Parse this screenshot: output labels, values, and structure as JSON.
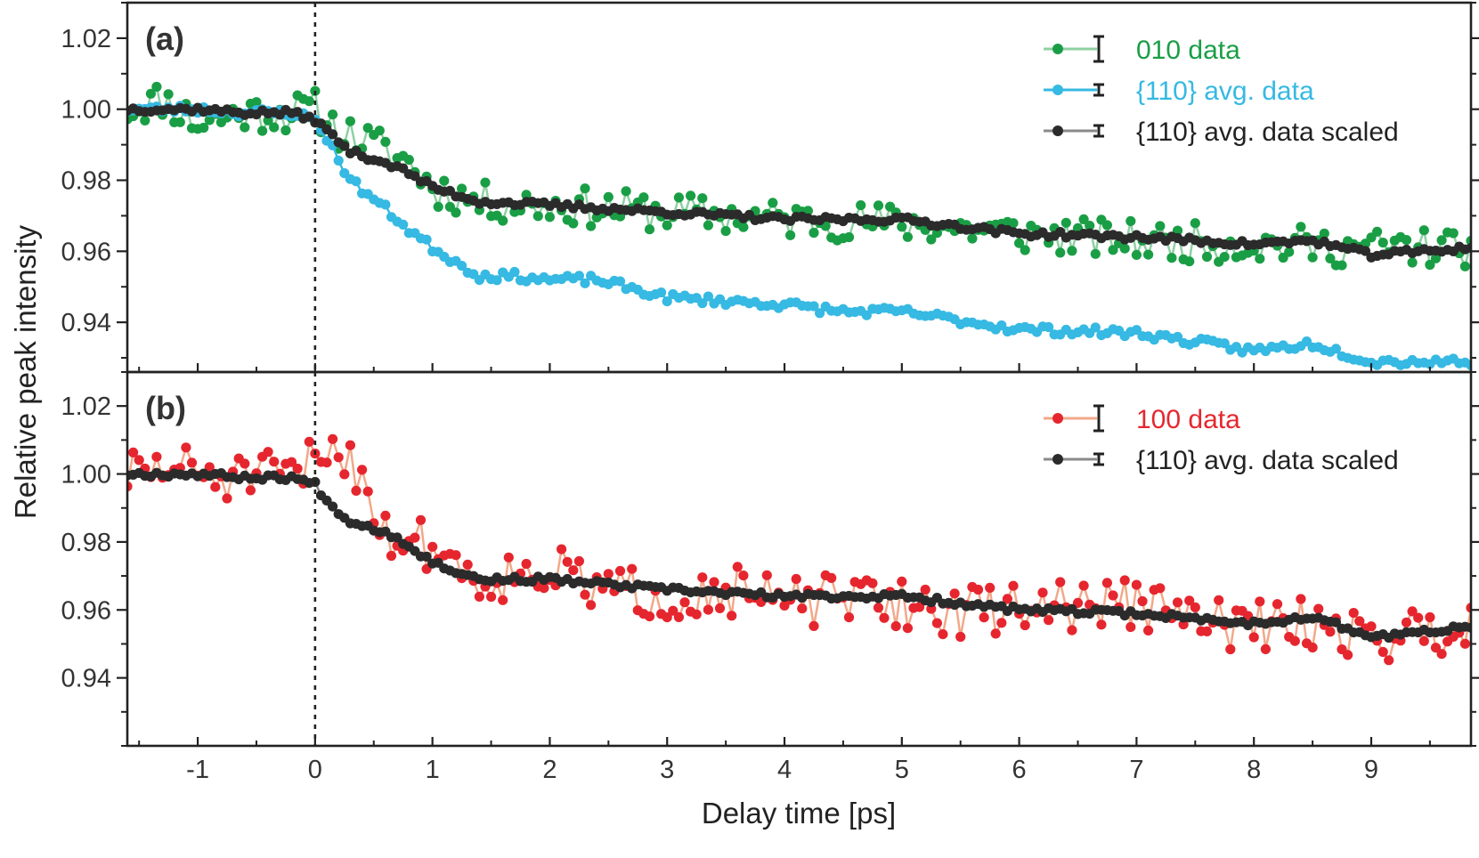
{
  "chart_data": {
    "type": "scatter",
    "xlabel": "Delay time [ps]",
    "ylabel": "Relative peak intensity",
    "xlim": [
      -1.6,
      9.85
    ],
    "x_ticks": [
      "-1",
      "0",
      "1",
      "2",
      "3",
      "4",
      "5",
      "6",
      "7",
      "8",
      "9"
    ],
    "time_zero_marker": 0,
    "panels": [
      {
        "label": "(a)",
        "ylim": [
          0.926,
          1.03
        ],
        "y_ticks": [
          "0.94",
          "0.96",
          "0.98",
          "1.00",
          "1.02"
        ],
        "legend_position": "top-right",
        "series": [
          {
            "name": "010 data",
            "color": "#1a9e45",
            "line_color": "#8fd0a3",
            "key": [
              [
                -1.6,
                1.0
              ],
              [
                -1.3,
                1.003
              ],
              [
                -1.0,
                0.996
              ],
              [
                -0.6,
                0.999
              ],
              [
                -0.2,
                0.999
              ],
              [
                0.0,
                1.0
              ],
              [
                0.2,
                0.994
              ],
              [
                0.5,
                0.99
              ],
              [
                0.8,
                0.985
              ],
              [
                1.0,
                0.978
              ],
              [
                1.4,
                0.974
              ],
              [
                2.0,
                0.973
              ],
              [
                3.0,
                0.971
              ],
              [
                4.0,
                0.969
              ],
              [
                5.0,
                0.968
              ],
              [
                6.0,
                0.965
              ],
              [
                7.0,
                0.963
              ],
              [
                8.0,
                0.962
              ],
              [
                9.0,
                0.961
              ],
              [
                9.85,
                0.961
              ]
            ],
            "noise": 0.0055,
            "noise_seed": 11
          },
          {
            "name": "{110} avg. data",
            "color": "#36b9e2",
            "line_color": "#36b9e2",
            "key": [
              [
                -1.6,
                1.0
              ],
              [
                -1.0,
                1.0
              ],
              [
                -0.6,
                0.999
              ],
              [
                -0.2,
                0.999
              ],
              [
                0.0,
                0.997
              ],
              [
                0.1,
                0.992
              ],
              [
                0.3,
                0.98
              ],
              [
                0.6,
                0.972
              ],
              [
                0.8,
                0.966
              ],
              [
                1.0,
                0.961
              ],
              [
                1.2,
                0.957
              ],
              [
                1.4,
                0.953
              ],
              [
                1.7,
                0.953
              ],
              [
                2.0,
                0.952
              ],
              [
                2.4,
                0.952
              ],
              [
                3.0,
                0.947
              ],
              [
                4.0,
                0.945
              ],
              [
                4.5,
                0.943
              ],
              [
                5.0,
                0.943
              ],
              [
                6.0,
                0.938
              ],
              [
                7.0,
                0.937
              ],
              [
                8.0,
                0.932
              ],
              [
                8.5,
                0.934
              ],
              [
                9.0,
                0.929
              ],
              [
                9.85,
                0.929
              ]
            ],
            "noise": 0.0012,
            "noise_seed": 23
          },
          {
            "name": "{110} avg. data scaled",
            "color": "#2b2b2b",
            "line_color": "#8a8a8a",
            "key": [
              [
                -1.6,
                1.0
              ],
              [
                -1.0,
                1.0
              ],
              [
                -0.6,
                0.999
              ],
              [
                -0.2,
                0.999
              ],
              [
                0.0,
                0.997
              ],
              [
                0.1,
                0.994
              ],
              [
                0.3,
                0.988
              ],
              [
                0.6,
                0.985
              ],
              [
                0.8,
                0.982
              ],
              [
                1.0,
                0.978
              ],
              [
                1.4,
                0.974
              ],
              [
                2.0,
                0.973
              ],
              [
                3.0,
                0.971
              ],
              [
                4.0,
                0.969
              ],
              [
                5.0,
                0.969
              ],
              [
                6.0,
                0.965
              ],
              [
                7.0,
                0.964
              ],
              [
                8.0,
                0.962
              ],
              [
                8.5,
                0.963
              ],
              [
                9.0,
                0.959
              ],
              [
                9.85,
                0.961
              ]
            ],
            "noise": 0.0008,
            "noise_seed": 37
          }
        ]
      },
      {
        "label": "(b)",
        "ylim": [
          0.92,
          1.03
        ],
        "y_ticks": [
          "0.94",
          "0.96",
          "0.98",
          "1.00",
          "1.02"
        ],
        "legend_position": "top-right",
        "series": [
          {
            "name": "100 data",
            "color": "#e6262e",
            "line_color": "#f2a88a",
            "key": [
              [
                -1.6,
                1.0
              ],
              [
                -1.2,
                1.002
              ],
              [
                -0.8,
                0.999
              ],
              [
                -0.4,
                0.999
              ],
              [
                -0.1,
                1.0
              ],
              [
                0.0,
                1.006
              ],
              [
                0.2,
                1.008
              ],
              [
                0.4,
                1.0
              ],
              [
                0.6,
                0.982
              ],
              [
                1.0,
                0.979
              ],
              [
                1.4,
                0.969
              ],
              [
                2.0,
                0.972
              ],
              [
                2.4,
                0.966
              ],
              [
                3.0,
                0.964
              ],
              [
                3.5,
                0.966
              ],
              [
                4.0,
                0.962
              ],
              [
                4.5,
                0.963
              ],
              [
                5.0,
                0.962
              ],
              [
                5.5,
                0.959
              ],
              [
                6.0,
                0.961
              ],
              [
                7.0,
                0.962
              ],
              [
                7.5,
                0.957
              ],
              [
                8.0,
                0.955
              ],
              [
                8.5,
                0.956
              ],
              [
                9.0,
                0.952
              ],
              [
                9.85,
                0.955
              ]
            ],
            "noise": 0.0075,
            "noise_seed": 51
          },
          {
            "name": "{110} avg. data scaled",
            "color": "#2b2b2b",
            "line_color": "#8a8a8a",
            "key": [
              [
                -1.6,
                1.0
              ],
              [
                -1.0,
                1.0
              ],
              [
                -0.6,
                0.999
              ],
              [
                -0.2,
                0.999
              ],
              [
                0.0,
                0.997
              ],
              [
                0.1,
                0.992
              ],
              [
                0.3,
                0.986
              ],
              [
                0.6,
                0.983
              ],
              [
                0.8,
                0.979
              ],
              [
                1.0,
                0.974
              ],
              [
                1.4,
                0.969
              ],
              [
                2.0,
                0.969
              ],
              [
                3.0,
                0.966
              ],
              [
                4.0,
                0.964
              ],
              [
                5.0,
                0.964
              ],
              [
                6.0,
                0.96
              ],
              [
                7.0,
                0.959
              ],
              [
                8.0,
                0.956
              ],
              [
                8.5,
                0.958
              ],
              [
                9.0,
                0.952
              ],
              [
                9.85,
                0.955
              ]
            ],
            "noise": 0.0008,
            "noise_seed": 67
          }
        ]
      }
    ]
  }
}
